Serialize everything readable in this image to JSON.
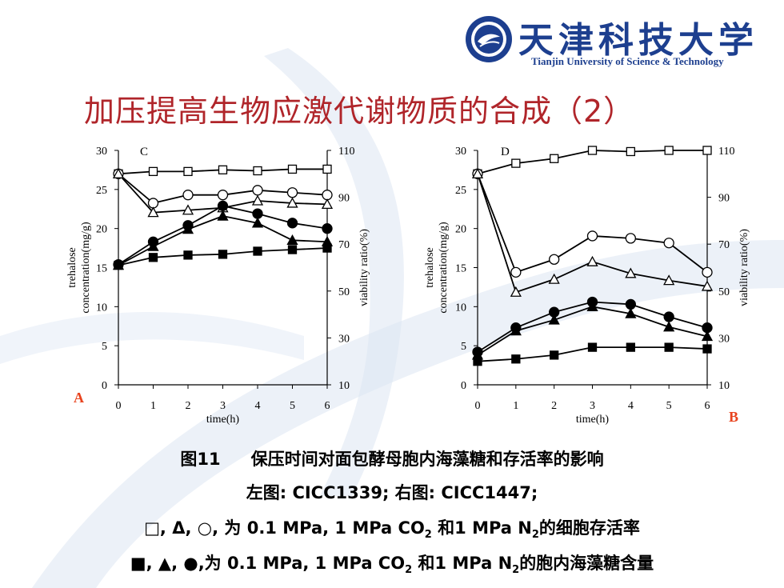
{
  "header": {
    "university_cn": "天津科技大学",
    "university_en": "Tianjin University of Science & Technology",
    "logo_icon": "university-seal-icon",
    "slide_title": "加压提高生物应激代谢物质的合成（2）"
  },
  "colors": {
    "title": "#b0252a",
    "brand": "#1d3f8f",
    "panel_letter": "#e8431e",
    "swoosh": "#dde6f2"
  },
  "chart_data": [
    {
      "type": "line",
      "panel_label": "C",
      "corner_label": "A",
      "xlabel": "time(h)",
      "ylabel_left": [
        "trehalose",
        "concentration(mg/g)"
      ],
      "ylabel_right": "viability ratio(%)",
      "x": [
        0,
        1,
        2,
        3,
        4,
        5,
        6
      ],
      "ylim_left": [
        0,
        30
      ],
      "yticks_left": [
        0,
        5,
        10,
        15,
        20,
        25,
        30
      ],
      "ylim_right": [
        10,
        110
      ],
      "yticks_right": [
        10,
        30,
        50,
        70,
        90,
        110
      ],
      "grid": false,
      "series": [
        {
          "marker": "open-square",
          "axis": "right",
          "values": [
            100,
            101,
            101,
            101.7,
            101.3,
            102,
            102
          ]
        },
        {
          "marker": "open-circle",
          "axis": "right",
          "values": [
            100,
            87.5,
            91,
            91,
            93,
            92,
            91
          ]
        },
        {
          "marker": "open-triangle",
          "axis": "right",
          "values": [
            100,
            83.5,
            84.5,
            85.5,
            88.5,
            87.5,
            87
          ]
        },
        {
          "marker": "filled-square",
          "axis": "left",
          "values": [
            15.3,
            16.3,
            16.6,
            16.7,
            17.1,
            17.3,
            17.5
          ]
        },
        {
          "marker": "filled-circle",
          "axis": "left",
          "values": [
            15.4,
            18.3,
            20.4,
            22.9,
            21.9,
            20.7,
            20
          ]
        },
        {
          "marker": "filled-triangle",
          "axis": "left",
          "values": [
            15.3,
            17.7,
            19.9,
            21.6,
            20.7,
            18.5,
            18.3
          ]
        }
      ]
    },
    {
      "type": "line",
      "panel_label": "D",
      "corner_label": "B",
      "xlabel": "time(h)",
      "ylabel_left": [
        "trehalose",
        "concentration(mg/g)"
      ],
      "ylabel_right": "viability ratio(%)",
      "x": [
        0,
        1,
        2,
        3,
        4,
        5,
        6
      ],
      "ylim_left": [
        0,
        30
      ],
      "yticks_left": [
        0,
        5,
        10,
        15,
        20,
        25,
        30
      ],
      "ylim_right": [
        10,
        110
      ],
      "yticks_right": [
        10,
        30,
        50,
        70,
        90,
        110
      ],
      "grid": false,
      "series": [
        {
          "marker": "open-square",
          "axis": "right",
          "values": [
            100,
            104.5,
            106.5,
            110,
            109.5,
            110,
            110
          ]
        },
        {
          "marker": "open-circle",
          "axis": "right",
          "values": [
            100,
            58,
            63.5,
            73.5,
            72.5,
            70.5,
            58
          ]
        },
        {
          "marker": "open-triangle",
          "axis": "right",
          "values": [
            100,
            49.5,
            55,
            62.5,
            57.5,
            54.5,
            52
          ]
        },
        {
          "marker": "filled-square",
          "axis": "left",
          "values": [
            3,
            3.3,
            3.8,
            4.8,
            4.8,
            4.8,
            4.6
          ]
        },
        {
          "marker": "filled-circle",
          "axis": "left",
          "values": [
            4.2,
            7.3,
            9.3,
            10.6,
            10.3,
            8.7,
            7.3
          ]
        },
        {
          "marker": "filled-triangle",
          "axis": "left",
          "values": [
            3.8,
            6.9,
            8.3,
            10,
            9.1,
            7.4,
            6.2
          ]
        }
      ]
    }
  ],
  "caption": {
    "figure": "图11",
    "title": "保压时间对面包酵母胞内海藻糖和存活率的影响",
    "strains": "左图: CICC1339;  右图: CICC1447;",
    "open_symbols": "□, Δ, ○,",
    "open_prefix": "为 0.1 MPa, 1 MPa CO",
    "sub_2": "2",
    "open_mid": " 和1 MPa N",
    "open_suffix": "的细胞存活率",
    "filled_symbols": "■, ▲, ●,",
    "filled_prefix": "为 0.1 MPa, 1 MPa CO",
    "filled_mid": " 和1 MPa N",
    "filled_suffix": "的胞内海藻糖含量"
  }
}
